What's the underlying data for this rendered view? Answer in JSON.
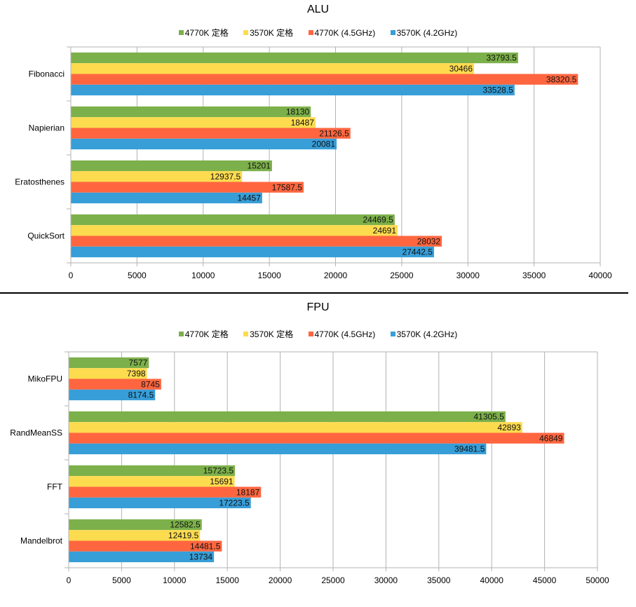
{
  "chart_data": [
    {
      "id": "alu",
      "type": "bar",
      "orientation": "horizontal",
      "title": "ALU",
      "xlabel": "",
      "ylabel": "",
      "xlim": [
        0,
        40000
      ],
      "xticks": [
        0,
        5000,
        10000,
        15000,
        20000,
        25000,
        30000,
        35000,
        40000
      ],
      "grid": true,
      "legend_position": "top-center",
      "categories": [
        "Fibonacci",
        "Napierian",
        "Eratosthenes",
        "QuickSort"
      ],
      "series": [
        {
          "name": "4770K 定格",
          "color": "#7cb04a",
          "values": [
            33793.5,
            18130,
            15201,
            24469.5
          ]
        },
        {
          "name": "3570K 定格",
          "color": "#fddb4f",
          "values": [
            30466,
            18487,
            12937.5,
            24691
          ]
        },
        {
          "name": "4770K (4.5GHz)",
          "color": "#ff6640",
          "values": [
            38320.5,
            21126.5,
            17587.5,
            28032
          ]
        },
        {
          "name": "3570K (4.2GHz)",
          "color": "#379ed8",
          "values": [
            33528.5,
            20081,
            14457,
            27442.5
          ]
        }
      ],
      "data_labels": [
        [
          "33793.5",
          "18130",
          "15201",
          "24469.5"
        ],
        [
          "30466",
          "18487",
          "12937.5",
          "24691"
        ],
        [
          "38320.5",
          "21126.5",
          "17587.5",
          "28032"
        ],
        [
          "33528.5",
          "20081",
          "14457",
          "27442.5"
        ]
      ],
      "tick_labels": [
        "0",
        "5000",
        "10000",
        "15000",
        "20000",
        "25000",
        "30000",
        "35000",
        "40000"
      ]
    },
    {
      "id": "fpu",
      "type": "bar",
      "orientation": "horizontal",
      "title": "FPU",
      "xlabel": "",
      "ylabel": "",
      "xlim": [
        0,
        50000
      ],
      "xticks": [
        0,
        5000,
        10000,
        15000,
        20000,
        25000,
        30000,
        35000,
        40000,
        45000,
        50000
      ],
      "grid": true,
      "legend_position": "top-center",
      "categories": [
        "MikoFPU",
        "RandMeanSS",
        "FFT",
        "Mandelbrot"
      ],
      "series": [
        {
          "name": "4770K 定格",
          "color": "#7cb04a",
          "values": [
            7577,
            41305.5,
            15723.5,
            12582.5
          ]
        },
        {
          "name": "3570K 定格",
          "color": "#fddb4f",
          "values": [
            7398,
            42893,
            15691,
            12419.5
          ]
        },
        {
          "name": "4770K (4.5GHz)",
          "color": "#ff6640",
          "values": [
            8745,
            46849,
            18187,
            14481.5
          ]
        },
        {
          "name": "3570K (4.2GHz)",
          "color": "#379ed8",
          "values": [
            8174.5,
            39481.5,
            17223.5,
            13734
          ]
        }
      ],
      "data_labels": [
        [
          "7577",
          "41305.5",
          "15723.5",
          "12582.5"
        ],
        [
          "7398",
          "42893",
          "15691",
          "12419.5"
        ],
        [
          "8745",
          "46849",
          "18187",
          "14481.5"
        ],
        [
          "8174.5",
          "39481.5",
          "17223.5",
          "13734"
        ]
      ],
      "tick_labels": [
        "0",
        "5000",
        "10000",
        "15000",
        "20000",
        "25000",
        "30000",
        "35000",
        "40000",
        "45000",
        "50000"
      ]
    }
  ],
  "colors": {
    "grid": "#b3b3b3",
    "divider": "#000000"
  }
}
